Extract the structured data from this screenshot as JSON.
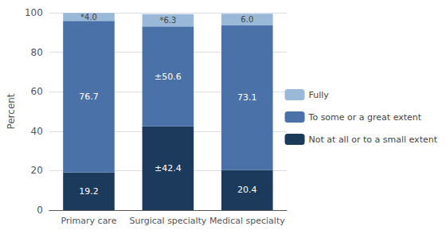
{
  "chart_data": {
    "type": "bar",
    "stacked": true,
    "categories": [
      "Primary care",
      "Surgical specialty",
      "Medical specialty"
    ],
    "series": [
      {
        "name": "Not at all or to a small extent",
        "color": "#1b3a5c",
        "values": [
          19.2,
          42.4,
          20.4
        ],
        "value_labels": [
          "19.2",
          "±42.4",
          "20.4"
        ]
      },
      {
        "name": "To some or a great extent",
        "color": "#4a72a8",
        "values": [
          76.7,
          50.6,
          73.1
        ],
        "value_labels": [
          "76.7",
          "±50.6",
          "73.1"
        ]
      },
      {
        "name": "Fully",
        "color": "#9ab8d8",
        "values": [
          4.0,
          6.3,
          6.0
        ],
        "value_labels": [
          "*4.0",
          "*6.3",
          "6.0"
        ]
      }
    ],
    "ylabel": "Percent",
    "ylim": [
      0,
      100
    ],
    "yticks": [
      0,
      20,
      40,
      60,
      80,
      100
    ],
    "grid": true,
    "data_labels": true,
    "legend": "right"
  }
}
